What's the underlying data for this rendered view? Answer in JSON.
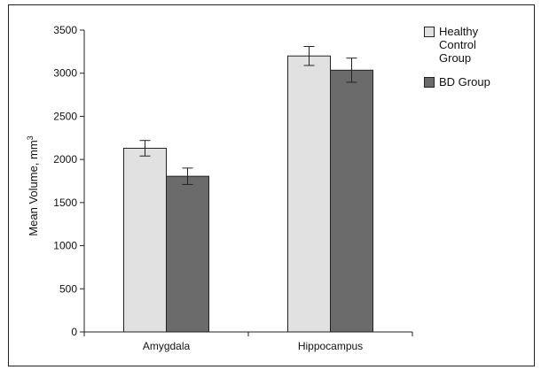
{
  "chart_data": {
    "type": "bar",
    "categories": [
      "Amygdala",
      "Hippocampus"
    ],
    "series": [
      {
        "name": "Healthy Control Group",
        "legend_lines": [
          "Healthy",
          "Control",
          "Group"
        ],
        "values": [
          2130,
          3200
        ],
        "errors": [
          90,
          110
        ],
        "color": "#e1e1e1"
      },
      {
        "name": "BD Group",
        "legend_lines": [
          "BD Group"
        ],
        "values": [
          1805,
          3035
        ],
        "errors": [
          95,
          140
        ],
        "color": "#6b6b6b"
      }
    ],
    "title": "",
    "xlabel": "",
    "ylabel": "Mean Volume, mm",
    "ylabel_superscript": "3",
    "ylim": [
      0,
      3500
    ],
    "yticks": [
      0,
      500,
      1000,
      1500,
      2000,
      2500,
      3000,
      3500
    ],
    "grid": false,
    "legend_position": "top-right",
    "error_bars": true
  }
}
